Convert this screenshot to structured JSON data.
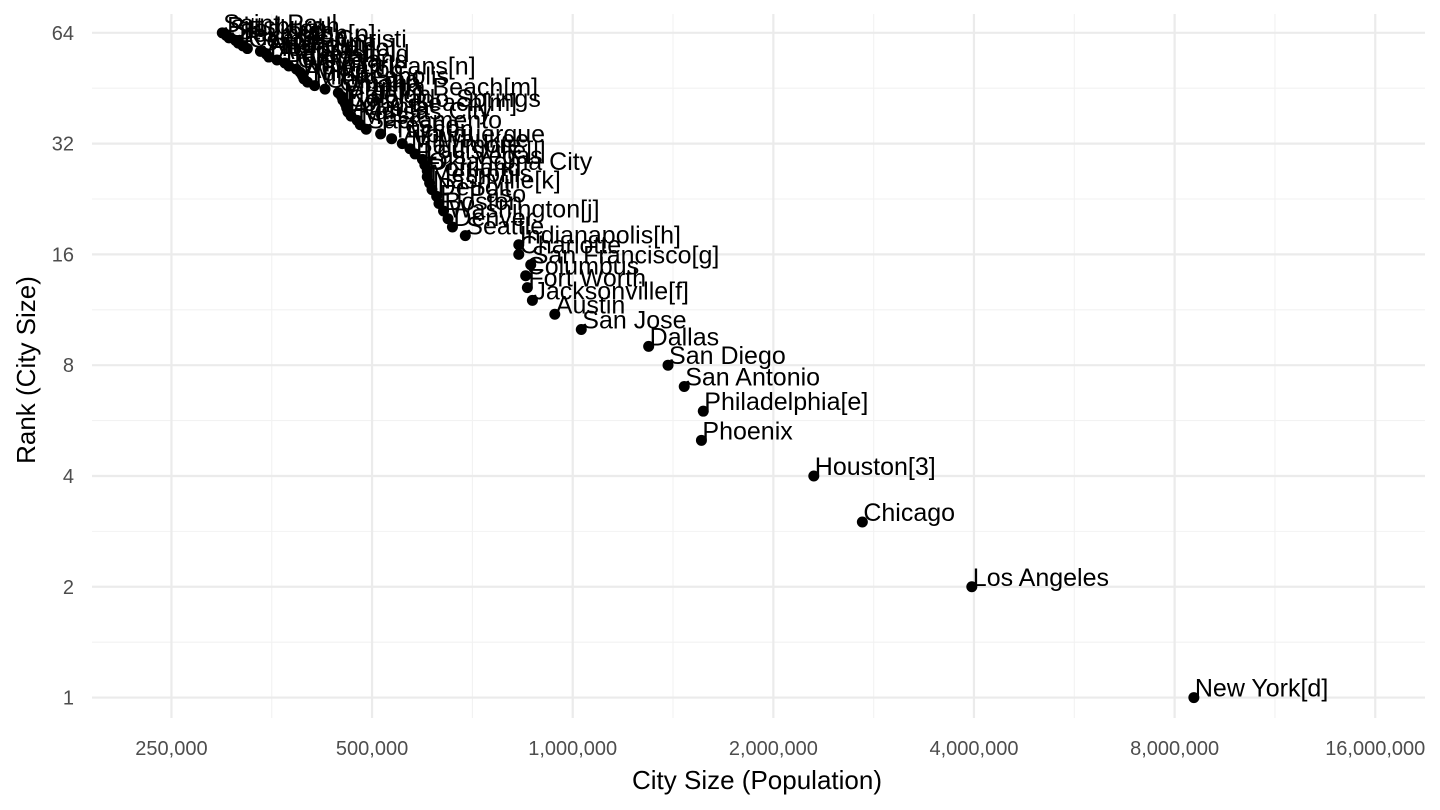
{
  "chart_data": {
    "type": "scatter",
    "title": "",
    "xlabel": "City Size (Population)",
    "ylabel": "Rank (City Size)",
    "x_scale": "log2",
    "y_scale": "log2",
    "xlim": [
      190000,
      19000000
    ],
    "ylim": [
      0.88,
      72
    ],
    "grid": true,
    "legend": "none",
    "x_ticks": [
      {
        "value": 250000,
        "label": "250,000"
      },
      {
        "value": 500000,
        "label": "500,000"
      },
      {
        "value": 1000000,
        "label": "1,000,000"
      },
      {
        "value": 2000000,
        "label": "2,000,000"
      },
      {
        "value": 4000000,
        "label": "4,000,000"
      },
      {
        "value": 8000000,
        "label": "8,000,000"
      },
      {
        "value": 16000000,
        "label": "16,000,000"
      }
    ],
    "y_ticks": [
      {
        "value": 1,
        "label": "1"
      },
      {
        "value": 2,
        "label": "2"
      },
      {
        "value": 4,
        "label": "4"
      },
      {
        "value": 8,
        "label": "8"
      },
      {
        "value": 16,
        "label": "16"
      },
      {
        "value": 32,
        "label": "32"
      },
      {
        "value": 64,
        "label": "64"
      }
    ],
    "point_color": "#000000",
    "points": [
      {
        "rank": 1,
        "population": 8550000,
        "label": "New York[d]"
      },
      {
        "rank": 2,
        "population": 3970000,
        "label": "Los Angeles"
      },
      {
        "rank": 3,
        "population": 2720000,
        "label": "Chicago"
      },
      {
        "rank": 4,
        "population": 2300000,
        "label": "Houston[3]"
      },
      {
        "rank": 5,
        "population": 1560000,
        "label": "Phoenix"
      },
      {
        "rank": 6,
        "population": 1570000,
        "label": "Philadelphia[e]"
      },
      {
        "rank": 7,
        "population": 1470000,
        "label": "San Antonio"
      },
      {
        "rank": 8,
        "population": 1390000,
        "label": "San Diego"
      },
      {
        "rank": 9,
        "population": 1300000,
        "label": "Dallas"
      },
      {
        "rank": 10,
        "population": 1030000,
        "label": "San Jose"
      },
      {
        "rank": 11,
        "population": 940000,
        "label": "Austin"
      },
      {
        "rank": 12,
        "population": 870000,
        "label": "Jacksonville[f]"
      },
      {
        "rank": 13,
        "population": 855000,
        "label": "Fort Worth"
      },
      {
        "rank": 14,
        "population": 850000,
        "label": "Columbus"
      },
      {
        "rank": 15,
        "population": 865000,
        "label": "San Francisco[g]"
      },
      {
        "rank": 16,
        "population": 830000,
        "label": "Charlotte"
      },
      {
        "rank": 17,
        "population": 830000,
        "label": "Indianapolis[h]"
      },
      {
        "rank": 18,
        "population": 690000,
        "label": "Seattle"
      },
      {
        "rank": 19,
        "population": 660000,
        "label": "Denver"
      },
      {
        "rank": 20,
        "population": 650000,
        "label": "Washington[j]"
      },
      {
        "rank": 21,
        "population": 640000,
        "label": "Boston"
      },
      {
        "rank": 22,
        "population": 630000,
        "label": "El Paso"
      },
      {
        "rank": 23,
        "population": 625000,
        "label": "Detroit"
      },
      {
        "rank": 24,
        "population": 615000,
        "label": "Nashville[k]"
      },
      {
        "rank": 25,
        "population": 610000,
        "label": "Memphis"
      },
      {
        "rank": 26,
        "population": 605000,
        "label": "Portland"
      },
      {
        "rank": 27,
        "population": 605000,
        "label": "Oklahoma City"
      },
      {
        "rank": 28,
        "population": 600000,
        "label": "Las Vegas"
      },
      {
        "rank": 29,
        "population": 595000,
        "label": "Louisville[l]"
      },
      {
        "rank": 30,
        "population": 580000,
        "label": "Baltimore"
      },
      {
        "rank": 31,
        "population": 570000,
        "label": "Milwaukee"
      },
      {
        "rank": 32,
        "population": 555000,
        "label": "Albuquerque"
      },
      {
        "rank": 33,
        "population": 535000,
        "label": "Tucson"
      },
      {
        "rank": 34,
        "population": 515000,
        "label": "Fresno"
      },
      {
        "rank": 35,
        "population": 490000,
        "label": "Sacramento"
      },
      {
        "rank": 36,
        "population": 480000,
        "label": "Mesa"
      },
      {
        "rank": 37,
        "population": 475000,
        "label": "Kansas City"
      },
      {
        "rank": 38,
        "population": 465000,
        "label": "Atlanta"
      },
      {
        "rank": 39,
        "population": 460000,
        "label": "Long Beach[m]"
      },
      {
        "rank": 40,
        "population": 458000,
        "label": "Colorado Springs"
      },
      {
        "rank": 41,
        "population": 456000,
        "label": "Raleigh"
      },
      {
        "rank": 42,
        "population": 452000,
        "label": "Miami"
      },
      {
        "rank": 43,
        "population": 450000,
        "label": "Virginia Beach[m]"
      },
      {
        "rank": 44,
        "population": 445000,
        "label": "Omaha"
      },
      {
        "rank": 45,
        "population": 425000,
        "label": "Oakland"
      },
      {
        "rank": 46,
        "population": 410000,
        "label": "Minneapolis"
      },
      {
        "rank": 47,
        "population": 400000,
        "label": "Tulsa"
      },
      {
        "rank": 48,
        "population": 395000,
        "label": "Arlington"
      },
      {
        "rank": 49,
        "population": 393000,
        "label": "New Orleans[n]"
      },
      {
        "rank": 50,
        "population": 390000,
        "label": "Wichita"
      },
      {
        "rank": 51,
        "population": 385000,
        "label": "Cleveland"
      },
      {
        "rank": 52,
        "population": 375000,
        "label": "Tampa"
      },
      {
        "rank": 53,
        "population": 370000,
        "label": "Bakersfield"
      },
      {
        "rank": 54,
        "population": 360000,
        "label": "Aurora"
      },
      {
        "rank": 55,
        "population": 350000,
        "label": "Honolulu[o]"
      },
      {
        "rank": 56,
        "population": 347000,
        "label": "Anaheim"
      },
      {
        "rank": 57,
        "population": 340000,
        "label": "Santa Ana"
      },
      {
        "rank": 58,
        "population": 325000,
        "label": "Corpus Christi"
      },
      {
        "rank": 59,
        "population": 320000,
        "label": "Riverside"
      },
      {
        "rank": 60,
        "population": 315000,
        "label": "Lexington[p]"
      },
      {
        "rank": 61,
        "population": 312000,
        "label": "St. Louis"
      },
      {
        "rank": 62,
        "population": 305000,
        "label": "Stockton"
      },
      {
        "rank": 63,
        "population": 302000,
        "label": "Pittsburgh"
      },
      {
        "rank": 64,
        "population": 298000,
        "label": "Saint Paul"
      }
    ]
  }
}
